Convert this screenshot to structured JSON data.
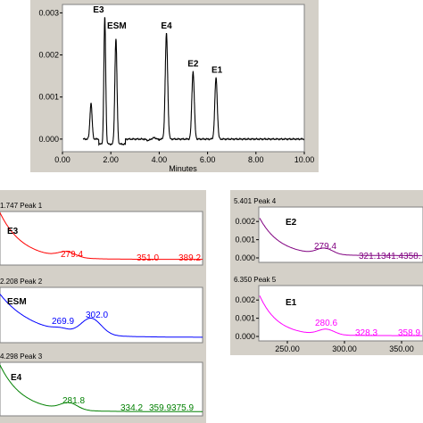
{
  "chart_data": [
    {
      "type": "line",
      "id": "chromatogram",
      "xlabel": "Minutes",
      "xlim": [
        0,
        10
      ],
      "ylim": [
        -0.0003,
        0.0032
      ],
      "x_ticks": [
        "0.00",
        "2.00",
        "4.00",
        "6.00",
        "8.00",
        "10.00"
      ],
      "x_tick_values": [
        0,
        2,
        4,
        6,
        8,
        10
      ],
      "y_ticks": [
        "0.000",
        "0.001",
        "0.002",
        "0.003"
      ],
      "y_tick_values": [
        0,
        0.001,
        0.002,
        0.003
      ],
      "color": "#000000",
      "peaks": [
        {
          "label": "",
          "x": 1.18,
          "height": 0.00085,
          "width": 0.07
        },
        {
          "label": "E3",
          "x": 1.75,
          "height": 0.003,
          "width": 0.06
        },
        {
          "label": "ESM",
          "x": 2.21,
          "height": 0.0025,
          "width": 0.07
        },
        {
          "label": "E4",
          "x": 4.3,
          "height": 0.0025,
          "width": 0.08
        },
        {
          "label": "E2",
          "x": 5.4,
          "height": 0.0016,
          "width": 0.08
        },
        {
          "label": "E1",
          "x": 6.35,
          "height": 0.00145,
          "width": 0.08
        }
      ]
    },
    {
      "type": "line",
      "id": "peak1",
      "header": "1.747 Peak 1",
      "name": "E3",
      "color": "#ff0000",
      "annotations": [
        "279.4",
        "351.0",
        "389.2"
      ]
    },
    {
      "type": "line",
      "id": "peak2",
      "header": "2.208 Peak 2",
      "name": "ESM",
      "color": "#0000ff",
      "annotations": [
        "269.9",
        "302.0"
      ]
    },
    {
      "type": "line",
      "id": "peak3",
      "header": "4.298 Peak 3",
      "name": "E4",
      "color": "#008000",
      "annotations": [
        "281.8",
        "334.2",
        "359.9375.9"
      ]
    },
    {
      "type": "line",
      "id": "peak4",
      "header": "5.401 Peak 4",
      "name": "E2",
      "color": "#800080",
      "y_ticks": [
        "0.000",
        "0.001",
        "0.002"
      ],
      "annotations": [
        "279.4",
        "321.1341.4358."
      ]
    },
    {
      "type": "line",
      "id": "peak5",
      "header": "6.350 Peak 5",
      "name": "E1",
      "color": "#ff00ff",
      "y_ticks": [
        "0.000",
        "0.001",
        "0.002"
      ],
      "x_ticks": [
        "250.00",
        "300.00",
        "350.00"
      ],
      "annotations": [
        "280.6",
        "328.3",
        "358.9"
      ]
    }
  ]
}
